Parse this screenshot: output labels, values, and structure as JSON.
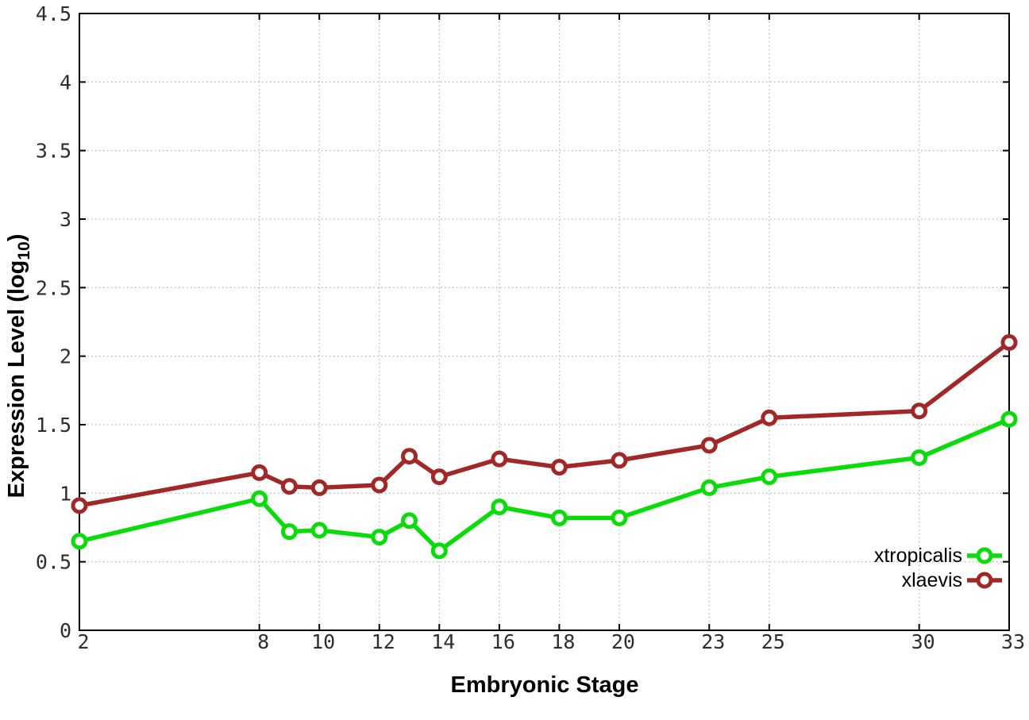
{
  "chart_data": {
    "type": "line",
    "xlabel": "Embryonic Stage",
    "ylabel": "Expression Level (log10)",
    "ylabel_parts": {
      "main": "Expression Level (log",
      "sub": "10",
      "end": ")"
    },
    "xlim": [
      2,
      33
    ],
    "ylim": [
      0,
      4.5
    ],
    "xticks": [
      2,
      8,
      10,
      12,
      14,
      16,
      18,
      20,
      23,
      25,
      30,
      33
    ],
    "yticks": [
      0,
      0.5,
      1,
      1.5,
      2,
      2.5,
      3,
      3.5,
      4,
      4.5
    ],
    "grid": true,
    "legend_position": "bottom-right-inside",
    "x": [
      2,
      8,
      9,
      10,
      12,
      13,
      14,
      16,
      18,
      20,
      23,
      25,
      30,
      33
    ],
    "series": [
      {
        "name": "xtropicalis",
        "color": "#0adc0a",
        "values": [
          0.65,
          0.96,
          0.72,
          0.73,
          0.68,
          0.8,
          0.58,
          0.9,
          0.82,
          0.82,
          1.04,
          1.12,
          1.26,
          1.54
        ]
      },
      {
        "name": "xlaevis",
        "color": "#a22828",
        "values": [
          0.91,
          1.15,
          1.05,
          1.04,
          1.06,
          1.27,
          1.12,
          1.25,
          1.19,
          1.24,
          1.35,
          1.55,
          1.6,
          2.1
        ]
      }
    ],
    "colors": {
      "grid": "#b8b8b8",
      "border": "#000000",
      "tick_text": "#2e2e2e"
    }
  }
}
